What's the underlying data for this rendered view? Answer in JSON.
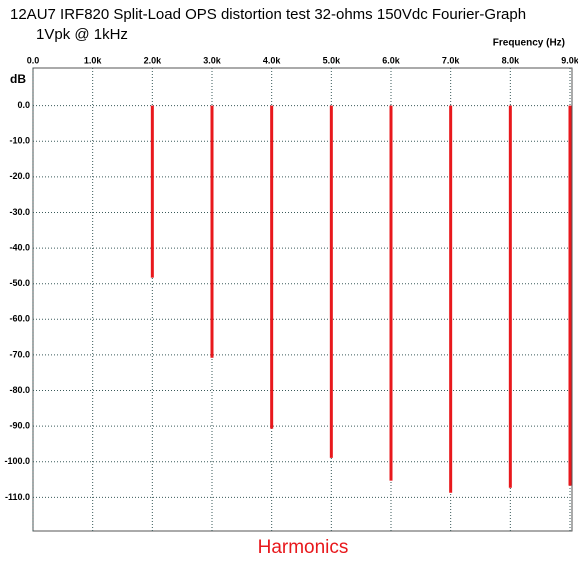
{
  "chart_data": {
    "type": "bar",
    "title": "12AU7 IRF820 Split-Load OPS distortion test 32-ohms 150Vdc Fourier-Graph",
    "subtitle": "1Vpk @ 1kHz",
    "x_label": "Frequency  (Hz)",
    "y_label": "dB",
    "annotation": "Harmonics",
    "x": [
      2000,
      3000,
      4000,
      5000,
      6000,
      7000,
      8000,
      9000
    ],
    "values": [
      -48.3,
      -70.8,
      -90.7,
      -98.9,
      -105.3,
      -108.7,
      -107.3,
      -106.7
    ],
    "color": "#e8181c",
    "xlim": [
      0,
      9000
    ],
    "xticks": [
      {
        "value": 0,
        "label": "0.0"
      },
      {
        "value": 1000,
        "label": "1.0k"
      },
      {
        "value": 2000,
        "label": "2.0k"
      },
      {
        "value": 3000,
        "label": "3.0k"
      },
      {
        "value": 4000,
        "label": "4.0k"
      },
      {
        "value": 5000,
        "label": "5.0k"
      },
      {
        "value": 6000,
        "label": "6.0k"
      },
      {
        "value": 7000,
        "label": "7.0k"
      },
      {
        "value": 8000,
        "label": "8.0k"
      },
      {
        "value": 9000,
        "label": "9.0k"
      }
    ],
    "ylim": [
      -120,
      10
    ],
    "yticks": [
      {
        "value": 0,
        "label": "0.0"
      },
      {
        "value": -10,
        "label": "-10.0"
      },
      {
        "value": -20,
        "label": "-20.0"
      },
      {
        "value": -30,
        "label": "-30.0"
      },
      {
        "value": -40,
        "label": "-40.0"
      },
      {
        "value": -50,
        "label": "-50.0"
      },
      {
        "value": -60,
        "label": "-60.0"
      },
      {
        "value": -70,
        "label": "-70.0"
      },
      {
        "value": -80,
        "label": "-80.0"
      },
      {
        "value": -90,
        "label": "-90.0"
      },
      {
        "value": -100,
        "label": "-100.0"
      },
      {
        "value": -110,
        "label": "-110.0"
      }
    ],
    "grid": true
  }
}
